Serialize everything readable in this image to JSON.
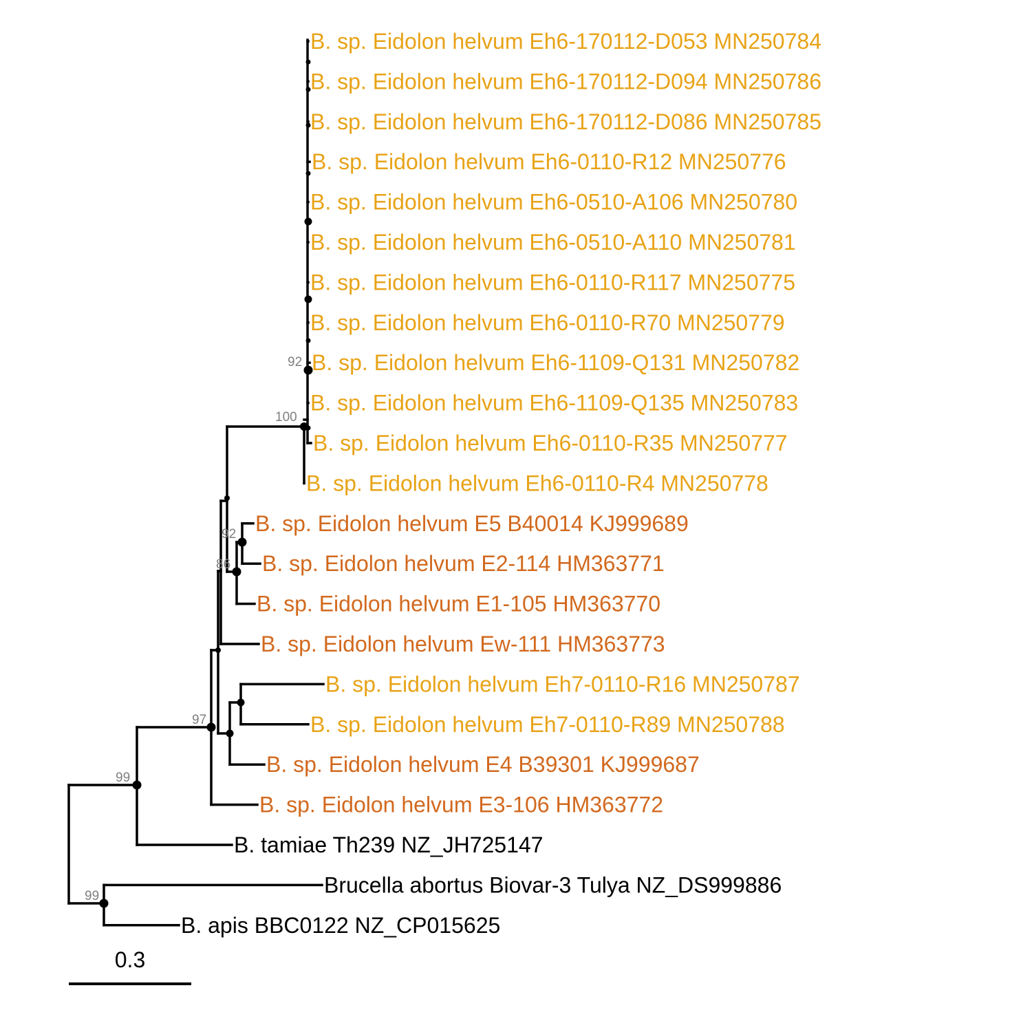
{
  "colors": {
    "clade_eh6_eh7": "#E8A317",
    "clade_e": "#D2691E",
    "outgroup": "#000000",
    "branch": "#000000",
    "support": "#7f7f7f"
  },
  "scale_bar": {
    "label": "0.3"
  },
  "tips": [
    {
      "label": "B. sp. Eidolon helvum Eh6-170112-D053 MN250784",
      "group": "clade_eh6_eh7"
    },
    {
      "label": "B. sp. Eidolon helvum Eh6-170112-D094 MN250786",
      "group": "clade_eh6_eh7"
    },
    {
      "label": "B. sp. Eidolon helvum Eh6-170112-D086 MN250785",
      "group": "clade_eh6_eh7"
    },
    {
      "label": "B. sp. Eidolon helvum Eh6-0110-R12 MN250776",
      "group": "clade_eh6_eh7"
    },
    {
      "label": "B. sp. Eidolon helvum Eh6-0510-A106 MN250780",
      "group": "clade_eh6_eh7"
    },
    {
      "label": "B. sp. Eidolon helvum Eh6-0510-A110 MN250781",
      "group": "clade_eh6_eh7"
    },
    {
      "label": "B. sp. Eidolon helvum Eh6-0110-R117 MN250775",
      "group": "clade_eh6_eh7"
    },
    {
      "label": "B. sp. Eidolon helvum Eh6-0110-R70 MN250779",
      "group": "clade_eh6_eh7"
    },
    {
      "label": "B. sp. Eidolon helvum Eh6-1109-Q131 MN250782",
      "group": "clade_eh6_eh7"
    },
    {
      "label": "B. sp. Eidolon helvum Eh6-1109-Q135 MN250783",
      "group": "clade_eh6_eh7"
    },
    {
      "label": "B. sp. Eidolon helvum Eh6-0110-R35 MN250777",
      "group": "clade_eh6_eh7"
    },
    {
      "label": "B. sp. Eidolon helvum Eh6-0110-R4 MN250778",
      "group": "clade_eh6_eh7"
    },
    {
      "label": "B. sp. Eidolon helvum E5 B40014 KJ999689",
      "group": "clade_e"
    },
    {
      "label": "B. sp. Eidolon helvum E2-114 HM363771",
      "group": "clade_e"
    },
    {
      "label": "B. sp. Eidolon helvum E1-105 HM363770",
      "group": "clade_e"
    },
    {
      "label": "B. sp. Eidolon helvum Ew-111 HM363773",
      "group": "clade_e"
    },
    {
      "label": "B. sp. Eidolon helvum Eh7-0110-R16 MN250787",
      "group": "clade_eh6_eh7"
    },
    {
      "label": "B. sp. Eidolon helvum Eh7-0110-R89 MN250788",
      "group": "clade_eh6_eh7"
    },
    {
      "label": "B. sp. Eidolon helvum E4 B39301 KJ999687",
      "group": "clade_e"
    },
    {
      "label": "B. sp. Eidolon helvum E3-106 HM363772",
      "group": "clade_e"
    },
    {
      "label": "B. tamiae Th239 NZ_JH725147",
      "group": "outgroup"
    },
    {
      "label": "Brucella abortus Biovar-3 Tulya NZ_DS999886",
      "group": "outgroup"
    },
    {
      "label": "B. apis BBC0122 NZ_CP015625",
      "group": "outgroup"
    }
  ],
  "support_values": [
    {
      "node": "eh6_inner",
      "value": "92"
    },
    {
      "node": "eh6_clade",
      "value": "100"
    },
    {
      "node": "e5_e2",
      "value": "92"
    },
    {
      "node": "e5_e2_e1",
      "value": "86"
    },
    {
      "node": "ingroup_core",
      "value": "97"
    },
    {
      "node": "bartonella_clade",
      "value": "99"
    },
    {
      "node": "brucella_apis",
      "value": "99"
    }
  ]
}
